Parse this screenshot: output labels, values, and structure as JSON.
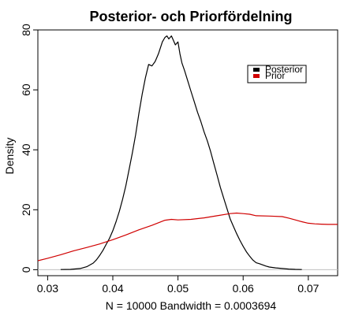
{
  "chart_data": {
    "type": "line",
    "title": "Posterior- och Priorfördelning",
    "xlabel": "N = 10000   Bandwidth = 0.0003694",
    "ylabel": "Density",
    "xlim": [
      0.0285,
      0.0745
    ],
    "ylim": [
      -2,
      80
    ],
    "x_ticks": [
      0.03,
      0.04,
      0.05,
      0.06,
      0.07
    ],
    "x_tick_labels": [
      "0.03",
      "0.04",
      "0.05",
      "0.06",
      "0.07"
    ],
    "y_ticks": [
      0,
      20,
      40,
      60,
      80
    ],
    "y_tick_labels": [
      "0",
      "20",
      "40",
      "60",
      "80"
    ],
    "zero_line": {
      "value": 0,
      "color": "#c0c0c0"
    },
    "grid": false,
    "legend": {
      "position": "top-right",
      "entries": [
        {
          "label": "Posterior",
          "color": "#000000"
        },
        {
          "label": "Prior",
          "color": "#d00000"
        }
      ]
    },
    "series": [
      {
        "name": "Posterior",
        "color": "#000000",
        "x": [
          0.032,
          0.0335,
          0.035,
          0.036,
          0.037,
          0.0375,
          0.038,
          0.0385,
          0.039,
          0.0395,
          0.04,
          0.0405,
          0.041,
          0.0415,
          0.042,
          0.0425,
          0.043,
          0.0435,
          0.044,
          0.0445,
          0.045,
          0.0455,
          0.046,
          0.0465,
          0.047,
          0.0473,
          0.0476,
          0.048,
          0.0483,
          0.0486,
          0.049,
          0.0493,
          0.0496,
          0.05,
          0.0503,
          0.0506,
          0.051,
          0.0515,
          0.052,
          0.0525,
          0.053,
          0.0535,
          0.054,
          0.0545,
          0.055,
          0.0555,
          0.056,
          0.0565,
          0.057,
          0.0575,
          0.058,
          0.0585,
          0.059,
          0.0595,
          0.06,
          0.0605,
          0.061,
          0.0615,
          0.062,
          0.0625,
          0.063,
          0.0635,
          0.064,
          0.065,
          0.066,
          0.067,
          0.068,
          0.069
        ],
        "y": [
          0.05,
          0.1,
          0.4,
          1.0,
          2.2,
          3.3,
          4.8,
          6.5,
          8.5,
          10.5,
          13.0,
          16.0,
          19.5,
          23.5,
          28.0,
          33.5,
          39.0,
          45.0,
          52.0,
          58.5,
          64.0,
          68.5,
          68.0,
          69.5,
          72.0,
          74.0,
          76.0,
          77.5,
          78.0,
          77.0,
          78.0,
          76.5,
          75.0,
          76.0,
          72.0,
          69.0,
          66.5,
          63.0,
          59.5,
          56.0,
          52.5,
          49.5,
          46.0,
          43.0,
          39.5,
          35.5,
          31.5,
          27.5,
          24.0,
          20.5,
          17.0,
          14.5,
          12.0,
          9.8,
          7.8,
          6.0,
          4.5,
          3.2,
          2.3,
          2.0,
          1.6,
          1.2,
          0.9,
          0.6,
          0.4,
          0.2,
          0.1,
          0.05
        ]
      },
      {
        "name": "Prior",
        "color": "#d00000",
        "x": [
          0.0285,
          0.03,
          0.032,
          0.034,
          0.036,
          0.038,
          0.04,
          0.042,
          0.044,
          0.046,
          0.048,
          0.049,
          0.05,
          0.052,
          0.054,
          0.056,
          0.058,
          0.059,
          0.06,
          0.061,
          0.062,
          0.064,
          0.066,
          0.067,
          0.068,
          0.069,
          0.07,
          0.071,
          0.072,
          0.073,
          0.0745
        ],
        "y": [
          3.0,
          3.8,
          5.0,
          6.3,
          7.4,
          8.6,
          10.0,
          11.6,
          13.3,
          14.8,
          16.5,
          16.8,
          16.6,
          16.8,
          17.3,
          18.0,
          18.7,
          18.9,
          18.7,
          18.5,
          18.0,
          17.9,
          17.7,
          17.2,
          16.6,
          16.0,
          15.5,
          15.3,
          15.2,
          15.1,
          15.1
        ]
      }
    ]
  }
}
